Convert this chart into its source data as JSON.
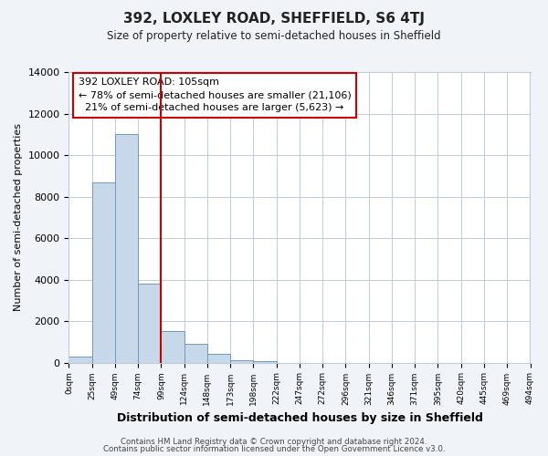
{
  "title": "392, LOXLEY ROAD, SHEFFIELD, S6 4TJ",
  "subtitle": "Size of property relative to semi-detached houses in Sheffield",
  "xlabel": "Distribution of semi-detached houses by size in Sheffield",
  "ylabel": "Number of semi-detached properties",
  "bin_labels": [
    "0sqm",
    "25sqm",
    "49sqm",
    "74sqm",
    "99sqm",
    "124sqm",
    "148sqm",
    "173sqm",
    "198sqm",
    "222sqm",
    "247sqm",
    "272sqm",
    "296sqm",
    "321sqm",
    "346sqm",
    "371sqm",
    "395sqm",
    "420sqm",
    "445sqm",
    "469sqm",
    "494sqm"
  ],
  "bar_values": [
    300,
    8700,
    11000,
    3800,
    1500,
    900,
    400,
    130,
    90,
    0,
    0,
    0,
    0,
    0,
    0,
    0,
    0,
    0,
    0,
    0
  ],
  "bar_color": "#c8d8eb",
  "bar_edge_color": "#7099bb",
  "vline_x": 4,
  "vline_color": "#cc0000",
  "annotation_title": "392 LOXLEY ROAD: 105sqm",
  "annotation_line1": "← 78% of semi-detached houses are smaller (21,106)",
  "annotation_line2": "21% of semi-detached houses are larger (5,623) →",
  "annotation_box_color": "#ffffff",
  "annotation_box_edge": "#cc0000",
  "ylim": [
    0,
    14000
  ],
  "yticks": [
    0,
    2000,
    4000,
    6000,
    8000,
    10000,
    12000,
    14000
  ],
  "footer1": "Contains HM Land Registry data © Crown copyright and database right 2024.",
  "footer2": "Contains public sector information licensed under the Open Government Licence v3.0.",
  "bg_color": "#f0f4f8",
  "plot_bg_color": "#ffffff",
  "grid_color": "#c0ccd8"
}
